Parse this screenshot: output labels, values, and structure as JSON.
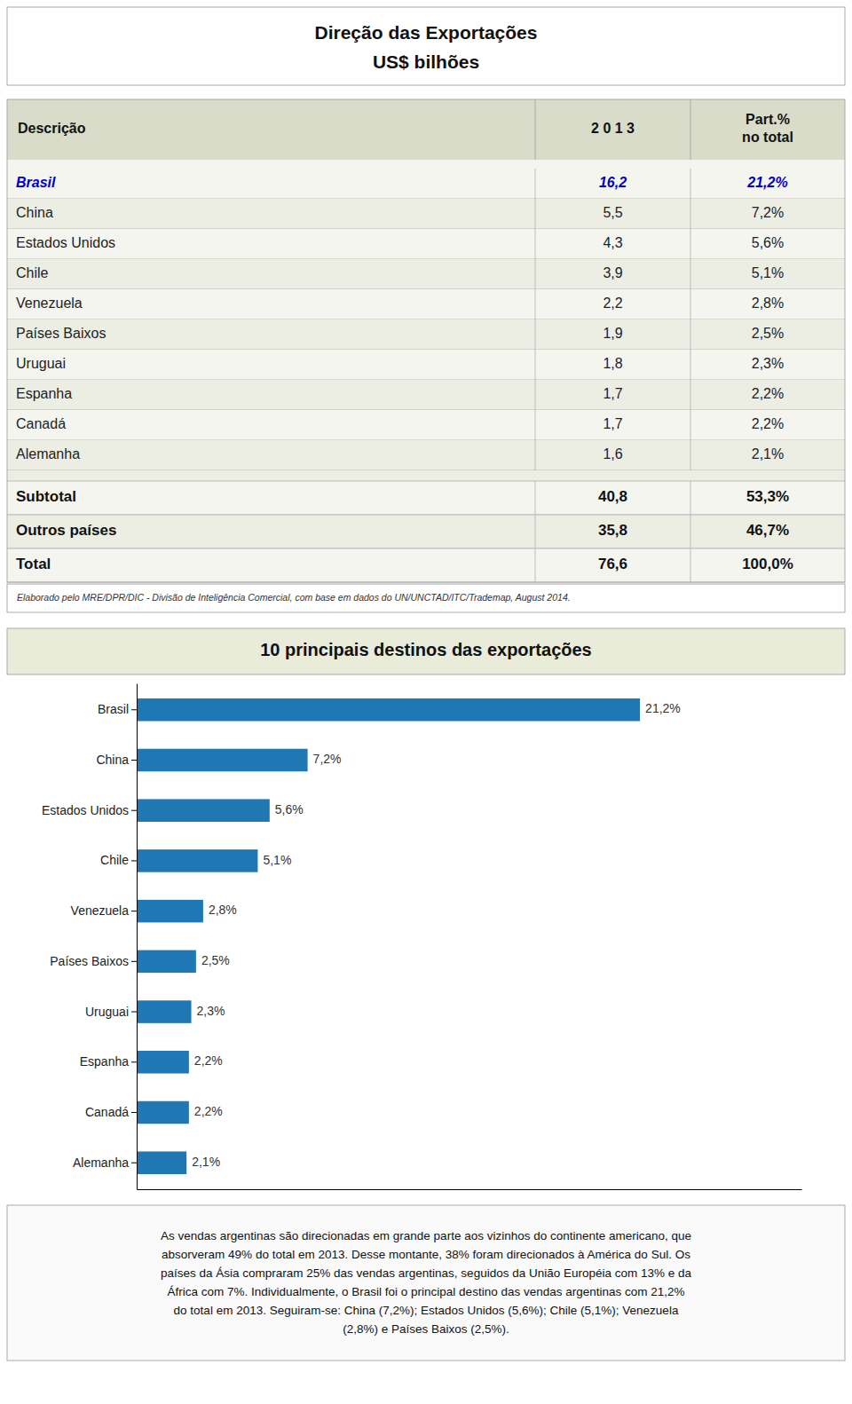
{
  "title": "Direção das Exportações",
  "subtitle": "US$ bilhões",
  "table": {
    "header": [
      "Descrição",
      "2 0 1 3",
      "Part.%\nno total"
    ],
    "rows": [
      {
        "cells": [
          "Brasil",
          "16,2",
          "21,2%"
        ],
        "color": "#0000cc"
      },
      {
        "cells": [
          "China",
          "5,5",
          "7,2%"
        ]
      },
      {
        "cells": [
          "Estados Unidos",
          "4,3",
          "5,6%"
        ]
      },
      {
        "cells": [
          "Chile",
          "3,9",
          "5,1%"
        ]
      },
      {
        "cells": [
          "Venezuela",
          "2,2",
          "2,8%"
        ]
      },
      {
        "cells": [
          "Países Baixos",
          "1,9",
          "2,5%"
        ]
      },
      {
        "cells": [
          "Uruguai",
          "1,8",
          "2,3%"
        ]
      },
      {
        "cells": [
          "Espanha",
          "1,7",
          "2,2%"
        ]
      },
      {
        "cells": [
          "Canadá",
          "1,7",
          "2,2%"
        ]
      },
      {
        "cells": [
          "Alemanha",
          "1,6",
          "2,1%"
        ]
      }
    ],
    "subtotal_rows": [
      [
        "Subtotal",
        "40,8",
        "53,3%"
      ],
      [
        "Outros países",
        "35,8",
        "46,7%"
      ],
      [
        "Total",
        "76,6",
        "100,0%"
      ]
    ]
  },
  "source": "Elaborado pelo MRE/DPR/DIC - Divisão de Inteligência Comercial, com base em dados do UN/UNCTAD/ITC/Trademap, August 2014.",
  "chart_data": {
    "type": "bar",
    "title": "10 principais destinos das exportações",
    "orientation": "horizontal",
    "categories": [
      "Brasil",
      "China",
      "Estados Unidos",
      "Chile",
      "Venezuela",
      "Países Baixos",
      "Uruguai",
      "Espanha",
      "Canadá",
      "Alemanha"
    ],
    "values": [
      21.2,
      7.2,
      5.6,
      5.1,
      2.8,
      2.5,
      2.3,
      2.2,
      2.2,
      2.1
    ],
    "value_labels": [
      "21,2%",
      "7,2%",
      "5,6%",
      "5,1%",
      "2,8%",
      "2,5%",
      "2,3%",
      "2,2%",
      "2,2%",
      "2,1%"
    ],
    "data_labels": true,
    "xlim": [
      0,
      28
    ],
    "xticks": [],
    "tick_labels": "y"
  },
  "footer": "As vendas argentinas são direcionadas em grande parte aos vizinhos do continente americano, que\nabsorveram 49% do total em 2013. Desse montante, 38% foram direcionados à América do Sul. Os\npaíses da Ásia compraram 25% das vendas argentinas, seguidos da União Européia com 13% e da\nÁfrica com 7%. Individualmente, o Brasil foi o principal destino das vendas argentinas com 21,2%\ndo total em 2013. Seguiram-se: China (7,2%); Estados Unidos (5,6%); Chile (5,1%); Venezuela\n(2,8%) e Países Baixos (2,5%)."
}
